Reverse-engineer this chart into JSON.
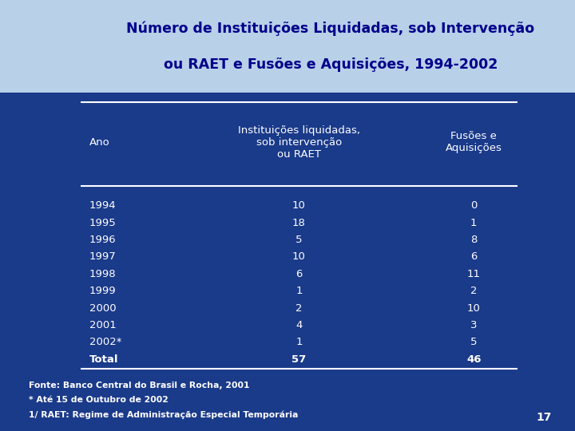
{
  "title_line1": "Número de Instituições Liquidadas, sob Intervenção",
  "title_line2": "ou RAET e Fusões e Aquisições, 1994-2002",
  "header": [
    "Ano",
    "Instituições liquidadas,\nsob intervenção\nou RAET",
    "Fusões e\nAquisições"
  ],
  "rows": [
    [
      "1994",
      "10",
      "0"
    ],
    [
      "1995",
      "18",
      "1"
    ],
    [
      "1996",
      "5",
      "8"
    ],
    [
      "1997",
      "10",
      "6"
    ],
    [
      "1998",
      "6",
      "11"
    ],
    [
      "1999",
      "1",
      "2"
    ],
    [
      "2000",
      "2",
      "10"
    ],
    [
      "2001",
      "4",
      "3"
    ],
    [
      "2002*",
      "1",
      "5"
    ],
    [
      "Total",
      "57",
      "46"
    ]
  ],
  "footnotes": [
    "Fonte: Banco Central do Brasil e Rocha, 2001",
    "* Até 15 de Outubro de 2002",
    "1/ RAET: Regime de Administração Especial Temporária"
  ],
  "page_number": "17",
  "bg_color": "#1a3a8a",
  "title_bg": "#b8d0e8",
  "title_color": "#00008B",
  "table_text_color": "#ffffff",
  "footnote_color": "#ffffff",
  "line_color": "#ffffff",
  "flag_green": "#009c3b",
  "flag_yellow": "#FFDF00",
  "flag_blue": "#003087"
}
